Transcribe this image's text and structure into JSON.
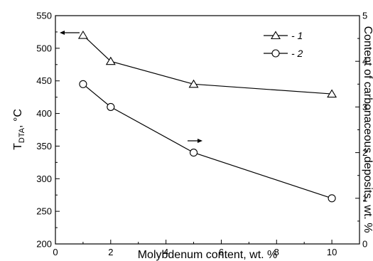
{
  "chart_data": {
    "type": "line",
    "x": [
      1,
      2,
      5,
      10
    ],
    "xlabel": "Molybdenum content, wt. %",
    "xlim": [
      0,
      11
    ],
    "xticks": [
      "0",
      "2",
      "4",
      "6",
      "8",
      "10"
    ],
    "ylabel_main": "T",
    "ylabel_sub": "DTA",
    "ylabel_unit": ", °C",
    "ylim": [
      200,
      550
    ],
    "yticks": [
      "200",
      "250",
      "300",
      "350",
      "400",
      "450",
      "500",
      "550"
    ],
    "y2label": "Content of carbonaceous deposits, wt. %",
    "y2lim": [
      0,
      5
    ],
    "y2ticks": [
      "0",
      "1",
      "2",
      "3",
      "4",
      "5"
    ],
    "series": [
      {
        "name": "- 1",
        "marker": "triangle",
        "axis": "left",
        "values": [
          520,
          480,
          445,
          430
        ]
      },
      {
        "name": "- 2",
        "marker": "circle",
        "axis": "right",
        "values": [
          3.5,
          3.0,
          2.0,
          1.0
        ]
      }
    ],
    "grid": false,
    "legend_position": "top-right",
    "colors": {
      "line": "#000000",
      "marker_fill": "#ffffff"
    }
  }
}
